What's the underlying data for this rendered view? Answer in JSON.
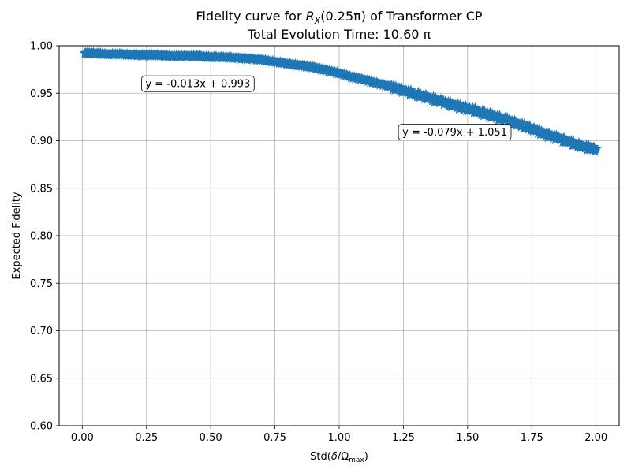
{
  "chart_data": {
    "type": "scatter",
    "title_prefix": "Fidelity curve for ",
    "title_math_main": "R",
    "title_math_sub": "X",
    "title_math_arg": "(0.25π)",
    "title_suffix": " of Transformer CP",
    "subtitle": "Total Evolution Time: 10.60 π",
    "xlabel_prefix": "Std(",
    "xlabel_delta": "δ",
    "xlabel_slash": "/Ω",
    "xlabel_sub": "max",
    "xlabel_suffix": ")",
    "ylabel": "Expected Fidelity",
    "xlim": [
      -0.09,
      2.09
    ],
    "ylim": [
      0.6,
      1.0
    ],
    "xticks": [
      "0.00",
      "0.25",
      "0.50",
      "0.75",
      "1.00",
      "1.25",
      "1.50",
      "1.75",
      "2.00"
    ],
    "yticks": [
      "0.60",
      "0.65",
      "0.70",
      "0.75",
      "0.80",
      "0.85",
      "0.90",
      "0.95",
      "1.00"
    ],
    "grid": true,
    "series": [
      {
        "marker": "star",
        "color": "#1f77b4",
        "points": [
          [
            0.01,
            0.992
          ],
          [
            0.05,
            0.992
          ],
          [
            0.1,
            0.991
          ],
          [
            0.15,
            0.991
          ],
          [
            0.2,
            0.99
          ],
          [
            0.25,
            0.99
          ],
          [
            0.3,
            0.99
          ],
          [
            0.35,
            0.989
          ],
          [
            0.4,
            0.989
          ],
          [
            0.45,
            0.989
          ],
          [
            0.5,
            0.988
          ],
          [
            0.55,
            0.988
          ],
          [
            0.6,
            0.987
          ],
          [
            0.65,
            0.986
          ],
          [
            0.7,
            0.985
          ],
          [
            0.75,
            0.983
          ],
          [
            0.8,
            0.981
          ],
          [
            0.85,
            0.979
          ],
          [
            0.9,
            0.977
          ],
          [
            0.95,
            0.974
          ],
          [
            1.0,
            0.971
          ],
          [
            1.05,
            0.967
          ],
          [
            1.1,
            0.964
          ],
          [
            1.15,
            0.96
          ],
          [
            1.2,
            0.957
          ],
          [
            1.25,
            0.953
          ],
          [
            1.3,
            0.949
          ],
          [
            1.35,
            0.945
          ],
          [
            1.4,
            0.941
          ],
          [
            1.45,
            0.937
          ],
          [
            1.5,
            0.934
          ],
          [
            1.55,
            0.93
          ],
          [
            1.6,
            0.926
          ],
          [
            1.65,
            0.922
          ],
          [
            1.7,
            0.917
          ],
          [
            1.75,
            0.913
          ],
          [
            1.8,
            0.907
          ],
          [
            1.85,
            0.903
          ],
          [
            1.9,
            0.898
          ],
          [
            1.95,
            0.894
          ],
          [
            2.0,
            0.891
          ]
        ]
      }
    ],
    "fit_lines": [
      {
        "color": "#d62728",
        "segment": [
          [
            0.0,
            0.993
          ],
          [
            0.85,
            0.982
          ]
        ]
      },
      {
        "color": "#d62728",
        "segment": [
          [
            0.85,
            0.984
          ],
          [
            2.0,
            0.893
          ]
        ]
      }
    ],
    "annotations": [
      {
        "text": "y = -0.013x + 0.993",
        "anchor": [
          0.45,
          0.96
        ]
      },
      {
        "text": "y = -0.079x + 1.051",
        "anchor": [
          1.45,
          0.909
        ]
      }
    ]
  }
}
